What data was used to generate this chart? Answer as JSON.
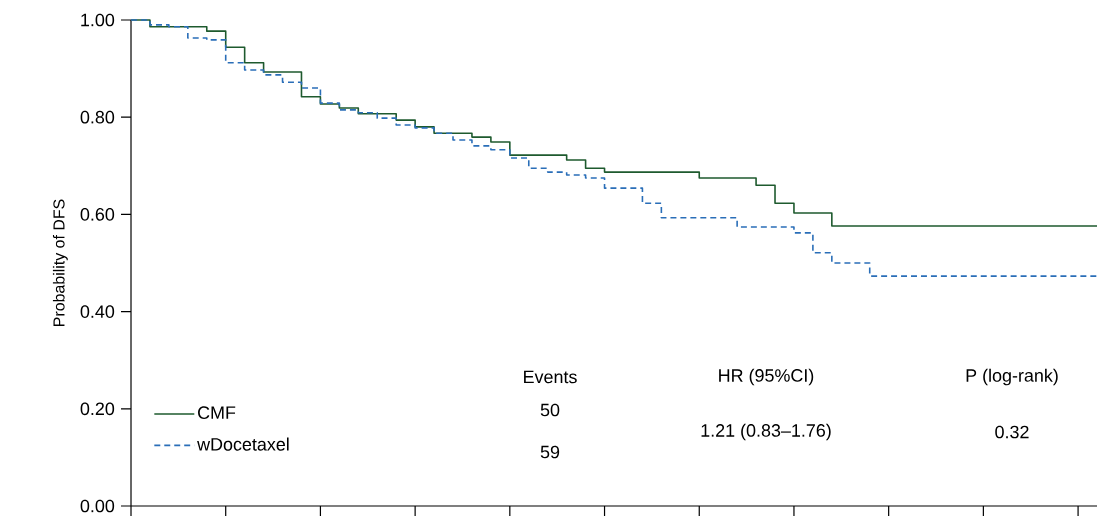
{
  "chart_data": {
    "type": "step",
    "ylabel": "Probability of DFS",
    "categories": [
      null,
      null,
      null,
      null,
      null,
      null,
      null,
      null,
      null,
      null,
      null,
      null,
      null,
      null,
      null,
      null,
      null,
      null,
      null,
      null,
      null,
      null,
      null,
      null,
      null,
      null,
      null,
      null,
      null,
      null,
      null,
      null,
      null,
      null,
      null,
      null,
      null,
      null,
      null,
      null,
      null,
      null,
      null,
      null,
      null,
      null,
      null,
      null,
      null,
      null,
      null,
      null
    ],
    "ylim": [
      0,
      1.0
    ],
    "yticks": [
      {
        "value": 0,
        "label": "0.00"
      },
      {
        "value": 0.2,
        "label": "0.20"
      },
      {
        "value": 0.4,
        "label": "0.40"
      },
      {
        "value": 0.6,
        "label": "0.60"
      },
      {
        "value": 0.8,
        "label": "0.80"
      },
      {
        "value": 1.0,
        "label": "1.00"
      }
    ],
    "tick_labels": "y",
    "legend": "bottom left",
    "series": [
      {
        "name": "CMF",
        "color": "#1e5a2e",
        "line_style": "solid",
        "values": [
          1.0,
          0.986,
          0.986,
          0.986,
          0.977,
          0.944,
          0.912,
          0.893,
          0.893,
          0.842,
          0.827,
          0.819,
          0.807,
          0.807,
          0.794,
          0.78,
          0.767,
          0.767,
          0.759,
          0.749,
          0.722,
          0.722,
          0.722,
          0.712,
          0.695,
          0.687,
          0.687,
          0.687,
          0.687,
          0.687,
          0.675,
          0.675,
          0.675,
          0.66,
          0.623,
          0.603,
          0.603,
          0.576,
          0.576,
          0.576,
          0.576,
          0.576,
          0.576,
          0.576,
          0.576,
          0.576,
          0.576,
          0.576,
          0.576,
          0.576,
          0.576,
          0.576
        ]
      },
      {
        "name": "wDocetaxel",
        "color": "#2a6eb8",
        "line_style": "dashed",
        "values": [
          1.0,
          0.99,
          0.986,
          0.963,
          0.959,
          0.912,
          0.897,
          0.887,
          0.872,
          0.86,
          0.829,
          0.815,
          0.809,
          0.798,
          0.784,
          0.778,
          0.767,
          0.753,
          0.741,
          0.733,
          0.716,
          0.695,
          0.687,
          0.681,
          0.675,
          0.654,
          0.654,
          0.623,
          0.593,
          0.593,
          0.593,
          0.593,
          0.574,
          0.574,
          0.574,
          0.562,
          0.521,
          0.5,
          0.5,
          0.473,
          0.473,
          0.473,
          0.473,
          0.473,
          0.473,
          0.473,
          0.473,
          0.473,
          0.473,
          0.473,
          0.473,
          0.473
        ]
      }
    ],
    "annotations": [
      "Events",
      "50",
      "59",
      "HR (95%CI)",
      "1.21 (0.83–1.76)",
      "P (log-rank)",
      "0.32"
    ]
  }
}
